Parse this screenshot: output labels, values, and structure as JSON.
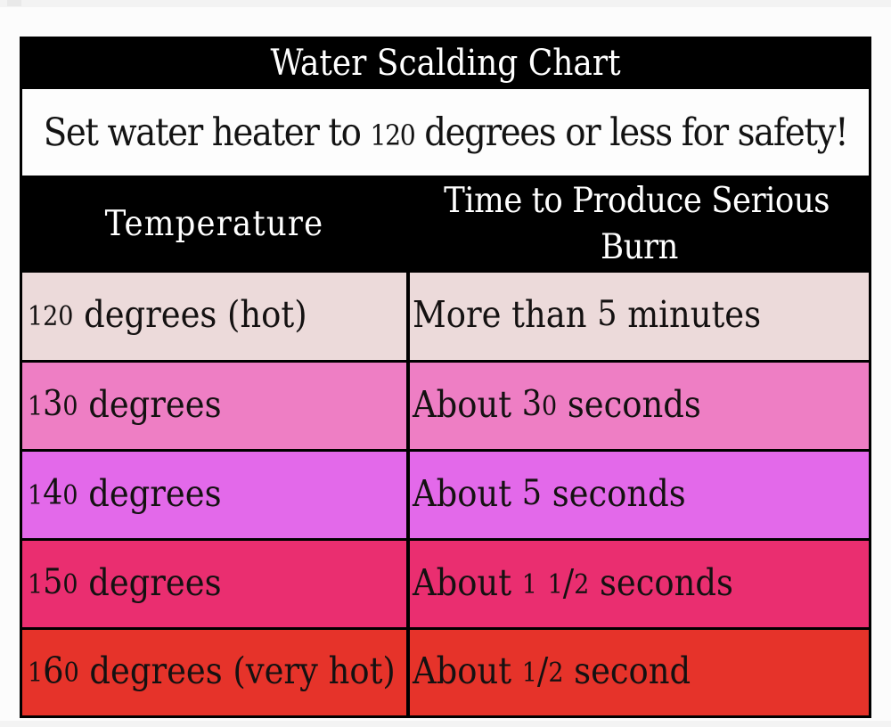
{
  "page": {
    "background": "#fcfcfc",
    "edge_strip_color": "#f3f3f3"
  },
  "table": {
    "title": "Water Scalding Chart",
    "subtitle": "Set water heater to 120 degrees or less for safety!",
    "columns": [
      "Temperature",
      "Time to Produce Serious Burn"
    ],
    "rows": [
      {
        "temperature": "120 degrees (hot)",
        "time": "More than 5 minutes",
        "color": "#ecdada"
      },
      {
        "temperature": "130 degrees",
        "time": "About 30 seconds",
        "color": "#ee7ec4"
      },
      {
        "temperature": "140 degrees",
        "time": "About 5 seconds",
        "color": "#e369ea"
      },
      {
        "temperature": "150 degrees",
        "time": "About 1 1/2 seconds",
        "color": "#ea2e70"
      },
      {
        "temperature": "160 degrees (very hot)",
        "time": "About 1/2 second",
        "color": "#e6332a"
      }
    ],
    "colors": {
      "frame": "#000000",
      "header_bg": "#000000",
      "header_text": "#ffffff",
      "body_text": "#141111",
      "subtitle_bg": "#fdfdfd"
    }
  },
  "chart_data": {
    "type": "table",
    "title": "Water Scalding Chart",
    "subtitle": "Set water heater to 120 degrees or less for safety!",
    "columns": [
      "Temperature",
      "Time to Produce Serious Burn"
    ],
    "rows": [
      [
        "120 degrees (hot)",
        "More than 5 minutes"
      ],
      [
        "130 degrees",
        "About 30 seconds"
      ],
      [
        "140 degrees",
        "About 5 seconds"
      ],
      [
        "150 degrees",
        "About 1 1/2 seconds"
      ],
      [
        "160 degrees (very hot)",
        "About 1/2 second"
      ]
    ],
    "row_colors": [
      "#ecdada",
      "#ee7ec4",
      "#e369ea",
      "#ea2e70",
      "#e6332a"
    ]
  }
}
